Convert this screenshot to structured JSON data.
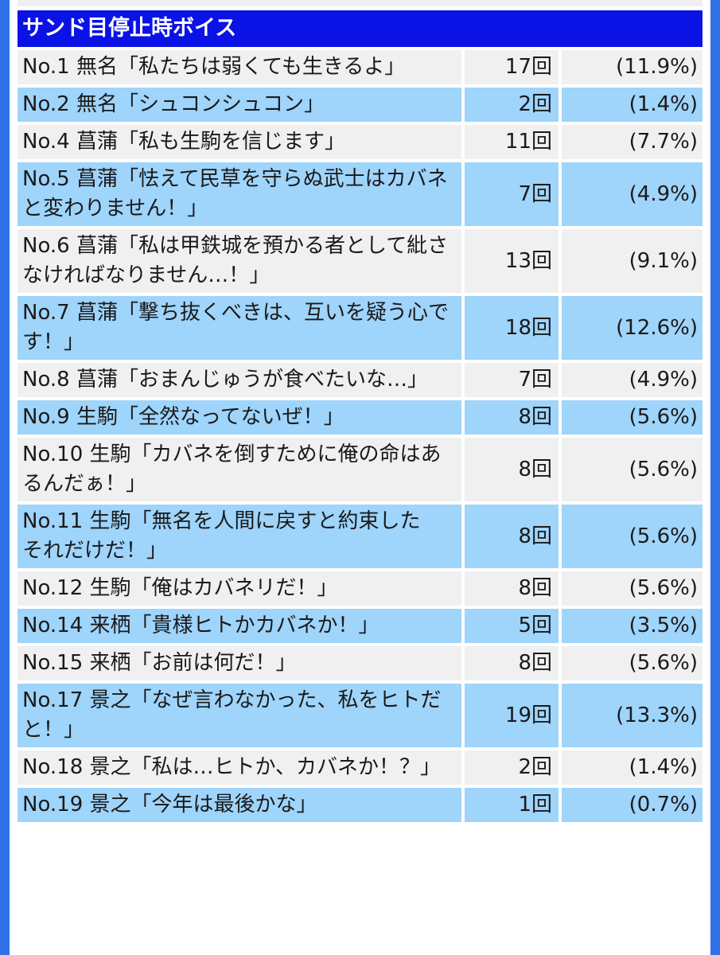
{
  "section": {
    "title": "サンド目停止時ボイス"
  },
  "rows": [
    {
      "no": "No.1",
      "speaker": "無名",
      "line": "「私たちは弱くても生きるよ」",
      "count": "17回",
      "pct": "(11.9%)",
      "style": "grey",
      "text": "No.1 無名「私たちは弱くても生きるよ」"
    },
    {
      "style": "blue",
      "text": "No.2 無名「シュコンシュコン」",
      "count": "2回",
      "pct": "(1.4%)"
    },
    {
      "style": "grey",
      "text": "No.4 菖蒲「私も生駒を信じます」",
      "count": "11回",
      "pct": "(7.7%)"
    },
    {
      "style": "blue",
      "text": "No.5 菖蒲「怯えて民草を守らぬ武士はカバネと変わりません！」",
      "count": "7回",
      "pct": "(4.9%)"
    },
    {
      "style": "grey",
      "text": "No.6 菖蒲「私は甲鉄城を預かる者として紕さなければなりません…！」",
      "count": "13回",
      "pct": "(9.1%)"
    },
    {
      "style": "blue",
      "text": "No.7 菖蒲「撃ち抜くべきは、互いを疑う心です！」",
      "count": "18回",
      "pct": "(12.6%)"
    },
    {
      "style": "grey",
      "text": "No.8 菖蒲「おまんじゅうが食べたいな…」",
      "count": "7回",
      "pct": "(4.9%)"
    },
    {
      "style": "blue",
      "text": "No.9 生駒「全然なってないぜ！」",
      "count": "8回",
      "pct": "(5.6%)"
    },
    {
      "style": "grey",
      "text": "No.10 生駒「カバネを倒すために俺の命はあるんだぁ！」",
      "count": "8回",
      "pct": "(5.6%)"
    },
    {
      "style": "blue",
      "text": "No.11 生駒「無名を人間に戻すと約束した　それだけだ！」",
      "count": "8回",
      "pct": "(5.6%)"
    },
    {
      "style": "grey",
      "text": "No.12 生駒「俺はカバネリだ！」",
      "count": "8回",
      "pct": "(5.6%)"
    },
    {
      "style": "blue",
      "text": "No.14 来栖「貴様ヒトかカバネか！」",
      "count": "5回",
      "pct": "(3.5%)"
    },
    {
      "style": "grey",
      "text": "No.15 来栖「お前は何だ！」",
      "count": "8回",
      "pct": "(5.6%)"
    },
    {
      "style": "blue",
      "text": "No.17 景之「なぜ言わなかった、私をヒトだと！」",
      "count": "19回",
      "pct": "(13.3%)"
    },
    {
      "style": "grey",
      "text": "No.18 景之「私は…ヒトか、カバネか！？」",
      "count": "2回",
      "pct": "(1.4%)"
    },
    {
      "style": "blue",
      "text": "No.19 景之「今年は最後かな」",
      "count": "1回",
      "pct": "(0.7%)"
    }
  ],
  "colors": {
    "header_bg": "#0a12e6",
    "row_grey": "#f0f0f0",
    "row_blue": "#9fd4fb",
    "frame": "#2f72e8"
  }
}
